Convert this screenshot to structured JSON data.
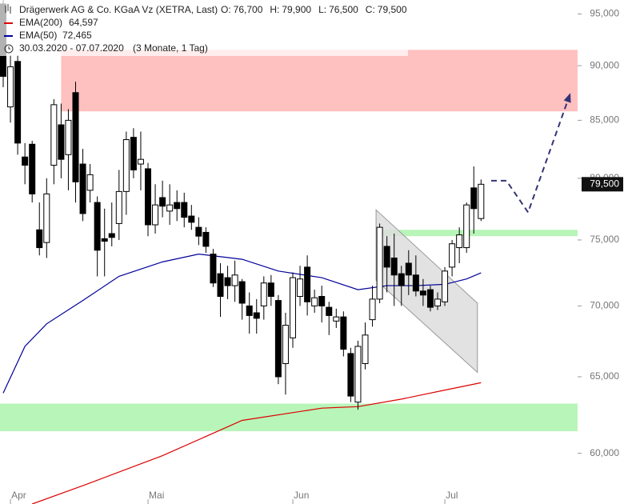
{
  "chart_data": {
    "type": "candlestick",
    "title": "Drägerwerk AG & Co. KGaA Vz (XETRA, Last)",
    "ohlc_header": [
      {
        "label": "O:",
        "value": "76,700"
      },
      {
        "label": "H:",
        "value": "79,900"
      },
      {
        "label": "L:",
        "value": "76,500"
      },
      {
        "label": "C:",
        "value": "79,500"
      }
    ],
    "date_range": "30.03.2020 - 07.07.2020",
    "period": "(3 Monate, 1 Tag)",
    "candles": {
      "open": [
        96,
        86.2,
        90.4,
        81.8,
        82.9,
        75.8,
        74.8,
        81.1,
        84.6,
        82,
        87.5,
        81.2,
        79,
        78,
        75.1,
        75.5,
        76.3,
        78.9,
        83.5,
        81.2,
        80.8,
        76.2,
        78.4,
        77.3,
        78,
        78,
        76.9,
        76,
        75.6,
        73.9,
        72.4,
        72.1,
        71.5,
        71.8,
        70,
        69.5,
        70,
        71.7,
        70.4,
        65.9,
        67.7,
        70.7,
        72.9,
        70,
        70.7,
        69.9,
        68.9,
        69.2,
        66.6,
        63.3,
        65.9,
        69,
        70.5,
        74.5,
        73.6,
        72.4,
        73.2,
        72.3,
        71.1,
        71.2,
        70,
        70.3,
        72.9,
        74.4,
        74.4,
        79.2,
        76.7
      ],
      "high": [
        97,
        91,
        91,
        83,
        83.2,
        78,
        80,
        86.9,
        86.5,
        86,
        88.5,
        82.5,
        81.2,
        78.5,
        77.5,
        78,
        80.7,
        84,
        84.3,
        84,
        81.3,
        79.5,
        79.8,
        79.5,
        79,
        78.8,
        77.8,
        76.8,
        76,
        74.3,
        73.2,
        73,
        73.4,
        72,
        71,
        70.5,
        72.2,
        72.3,
        70.8,
        69.5,
        72.5,
        73,
        73.8,
        71.2,
        71.5,
        70.3,
        69.8,
        69.6,
        67,
        67.5,
        68.8,
        71.5,
        76.3,
        75.3,
        75.5,
        73,
        74.2,
        73.8,
        72,
        71.5,
        71,
        72.9,
        75,
        76,
        78,
        81,
        79.9
      ],
      "low": [
        88,
        84.8,
        82,
        79.5,
        78,
        73.8,
        73.6,
        79.5,
        80,
        79,
        78,
        76.5,
        78,
        72.2,
        72.2,
        74.5,
        75,
        77,
        80,
        79,
        75.3,
        75.5,
        76.8,
        76.2,
        76.5,
        76,
        75.8,
        74.6,
        74,
        71.4,
        69.2,
        70.5,
        70.3,
        69,
        68,
        68,
        69,
        70,
        64.5,
        63.8,
        67,
        70,
        69.3,
        69.5,
        68.8,
        67.9,
        68.4,
        66.4,
        63.3,
        62.8,
        65.5,
        68.5,
        70.2,
        71,
        70,
        70,
        70.8,
        70.7,
        70,
        69.6,
        69.7,
        70,
        72.2,
        73.2,
        74,
        75.5,
        76.5
      ],
      "close": [
        89,
        89.9,
        83,
        81.1,
        78.7,
        74.4,
        78.7,
        86.4,
        81.6,
        85,
        79.7,
        77.1,
        80.3,
        74.2,
        74.9,
        75.2,
        78.9,
        83.3,
        80.7,
        81.6,
        76.2,
        77.8,
        77.7,
        77.8,
        77.5,
        76.8,
        76.4,
        75.3,
        74.5,
        71.7,
        70.7,
        71.5,
        72.3,
        70.2,
        69.3,
        69.1,
        71.7,
        70.7,
        65,
        68.6,
        72.1,
        72,
        70.3,
        70.6,
        70,
        69.3,
        69.2,
        66.9,
        63.7,
        67.1,
        67.9,
        70.5,
        76,
        72.9,
        72.3,
        71.5,
        72.3,
        71.1,
        70.8,
        69.9,
        70.5,
        72.6,
        74.7,
        75.4,
        77.8,
        77.5,
        79.5
      ]
    },
    "series": [
      {
        "name": "EMA(200)",
        "color": "#dd0000",
        "value_label": "64,597",
        "x": [
          4,
          11,
          22,
          33,
          44,
          49,
          55,
          61,
          66
        ],
        "values": [
          56.9,
          58.0,
          59.85,
          62.1,
          62.9,
          63.0,
          63.5,
          64.1,
          64.597
        ]
      },
      {
        "name": "EMA(50)",
        "color": "#000099",
        "value_label": "72,465",
        "x": [
          0,
          3,
          6,
          11,
          16,
          22,
          27,
          33,
          38,
          44,
          49,
          53,
          57,
          61,
          64,
          66
        ],
        "values": [
          63.9,
          67.1,
          68.7,
          70.4,
          72.2,
          73.3,
          73.9,
          73.5,
          72.6,
          72.1,
          71.2,
          71.5,
          71.5,
          71.6,
          72.0,
          72.465
        ]
      }
    ],
    "zones": [
      {
        "from": 8,
        "y": [
          85.8,
          91.5
        ],
        "color": "#ffc0c0"
      },
      {
        "from": 51.6,
        "y": [
          75.3,
          75.8
        ],
        "color": "#b8f5b8"
      },
      {
        "from": -0.5,
        "y": [
          61.4,
          63.2
        ],
        "color": "#b8f5b8"
      }
    ],
    "channel": {
      "x": [
        51.5,
        65.5,
        65.5,
        51.5
      ],
      "values": [
        77.4,
        70.2,
        65.3,
        71.9
      ],
      "color": "#dddddd"
    },
    "projection": {
      "x": [
        67.4,
        69.5,
        72.5,
        78.2
      ],
      "values": [
        79.8,
        79.8,
        77.2,
        87.2
      ],
      "color": "#333377"
    },
    "last_price": {
      "value": 79.5,
      "label": "79,500"
    },
    "log_scale": true,
    "ylim": [
      56.9,
      96.4
    ],
    "yticks": [
      {
        "value": 60,
        "label": "60,000"
      },
      {
        "value": 65,
        "label": "65,000"
      },
      {
        "value": 70,
        "label": "70,000"
      },
      {
        "value": 75,
        "label": "75,000"
      },
      {
        "value": 80,
        "label": "80,000"
      },
      {
        "value": 85,
        "label": "85,000"
      },
      {
        "value": 90,
        "label": "90,000"
      },
      {
        "value": 95,
        "label": "95,000"
      }
    ],
    "xticks": [
      {
        "value": 2,
        "label": "Apr"
      },
      {
        "value": 21,
        "label": "Mai"
      },
      {
        "value": 41,
        "label": "Jun"
      },
      {
        "value": 62,
        "label": "Jul"
      }
    ]
  }
}
